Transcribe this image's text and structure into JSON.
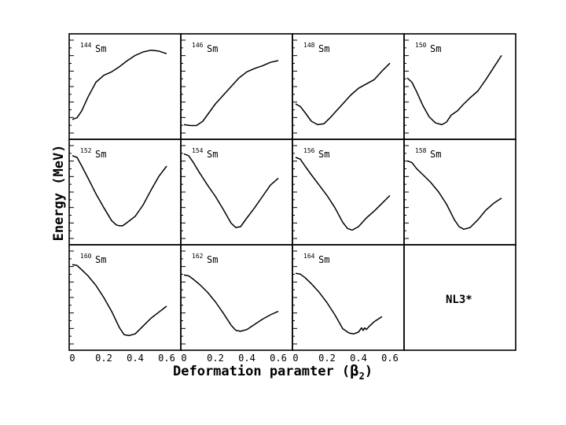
{
  "figure": {
    "xlabel_main": "Deformation paramter (",
    "xlabel_beta": "β",
    "xlabel_sub": "2",
    "xlabel_close": ")",
    "ylabel": "Energy (MeV)",
    "model_label": "NL3*"
  },
  "chart_data": {
    "type": "line",
    "xlabel": "Deformation paramter (β2)",
    "ylabel": "Energy (MeV)",
    "xlim": [
      0,
      0.6
    ],
    "x_ticks": [
      "0",
      "0.2",
      "0.4",
      "0.6"
    ],
    "grid": false,
    "panels": [
      {
        "mass": "144",
        "symbol": "Sm",
        "x": [
          0,
          0.03,
          0.06,
          0.1,
          0.15,
          0.2,
          0.25,
          0.3,
          0.35,
          0.4,
          0.45,
          0.5,
          0.55,
          0.6
        ],
        "y": [
          0.12,
          0.14,
          0.22,
          0.38,
          0.55,
          0.63,
          0.67,
          0.73,
          0.8,
          0.86,
          0.9,
          0.92,
          0.91,
          0.88
        ]
      },
      {
        "mass": "146",
        "symbol": "Sm",
        "x": [
          0,
          0.04,
          0.08,
          0.12,
          0.16,
          0.2,
          0.25,
          0.3,
          0.35,
          0.4,
          0.45,
          0.5,
          0.55,
          0.6
        ],
        "y": [
          0.06,
          0.05,
          0.05,
          0.1,
          0.2,
          0.3,
          0.4,
          0.5,
          0.6,
          0.67,
          0.71,
          0.74,
          0.78,
          0.8
        ]
      },
      {
        "mass": "148",
        "symbol": "Sm",
        "x": [
          0,
          0.03,
          0.06,
          0.1,
          0.14,
          0.18,
          0.22,
          0.26,
          0.3,
          0.35,
          0.4,
          0.45,
          0.5,
          0.55,
          0.6
        ],
        "y": [
          0.3,
          0.27,
          0.2,
          0.1,
          0.06,
          0.07,
          0.14,
          0.22,
          0.3,
          0.4,
          0.48,
          0.53,
          0.58,
          0.68,
          0.77
        ]
      },
      {
        "mass": "150",
        "symbol": "Sm",
        "x": [
          0,
          0.03,
          0.06,
          0.1,
          0.14,
          0.18,
          0.22,
          0.25,
          0.28,
          0.32,
          0.36,
          0.4,
          0.45,
          0.5,
          0.55,
          0.6
        ],
        "y": [
          0.6,
          0.55,
          0.44,
          0.28,
          0.15,
          0.08,
          0.06,
          0.09,
          0.17,
          0.22,
          0.3,
          0.37,
          0.45,
          0.58,
          0.72,
          0.86
        ]
      },
      {
        "mass": "152",
        "symbol": "Sm",
        "x": [
          0,
          0.03,
          0.06,
          0.1,
          0.15,
          0.2,
          0.25,
          0.28,
          0.3,
          0.32,
          0.35,
          0.4,
          0.45,
          0.5,
          0.55,
          0.6
        ],
        "y": [
          0.92,
          0.9,
          0.8,
          0.66,
          0.48,
          0.32,
          0.17,
          0.12,
          0.11,
          0.11,
          0.15,
          0.22,
          0.35,
          0.52,
          0.68,
          0.8
        ]
      },
      {
        "mass": "154",
        "symbol": "Sm",
        "x": [
          0,
          0.03,
          0.06,
          0.1,
          0.15,
          0.2,
          0.25,
          0.3,
          0.33,
          0.36,
          0.4,
          0.45,
          0.5,
          0.55,
          0.6
        ],
        "y": [
          0.94,
          0.92,
          0.84,
          0.72,
          0.58,
          0.45,
          0.3,
          0.14,
          0.09,
          0.1,
          0.2,
          0.32,
          0.45,
          0.58,
          0.66
        ]
      },
      {
        "mass": "156",
        "symbol": "Sm",
        "x": [
          0,
          0.03,
          0.06,
          0.1,
          0.15,
          0.2,
          0.25,
          0.3,
          0.33,
          0.36,
          0.4,
          0.45,
          0.5,
          0.55,
          0.6
        ],
        "y": [
          0.9,
          0.88,
          0.8,
          0.7,
          0.58,
          0.46,
          0.32,
          0.15,
          0.08,
          0.06,
          0.1,
          0.2,
          0.28,
          0.37,
          0.46
        ]
      },
      {
        "mass": "158",
        "symbol": "Sm",
        "x": [
          0,
          0.03,
          0.06,
          0.1,
          0.15,
          0.2,
          0.25,
          0.3,
          0.33,
          0.36,
          0.4,
          0.45,
          0.5,
          0.55,
          0.6
        ],
        "y": [
          0.86,
          0.84,
          0.77,
          0.7,
          0.61,
          0.5,
          0.36,
          0.18,
          0.1,
          0.07,
          0.09,
          0.18,
          0.29,
          0.37,
          0.43
        ]
      },
      {
        "mass": "160",
        "symbol": "Sm",
        "x": [
          0,
          0.03,
          0.06,
          0.1,
          0.15,
          0.2,
          0.25,
          0.3,
          0.33,
          0.36,
          0.4,
          0.45,
          0.5,
          0.55,
          0.6
        ],
        "y": [
          0.88,
          0.87,
          0.82,
          0.75,
          0.64,
          0.5,
          0.34,
          0.15,
          0.07,
          0.06,
          0.08,
          0.17,
          0.26,
          0.33,
          0.4
        ]
      },
      {
        "mass": "162",
        "symbol": "Sm",
        "x": [
          0,
          0.03,
          0.06,
          0.1,
          0.15,
          0.2,
          0.25,
          0.3,
          0.33,
          0.36,
          0.4,
          0.45,
          0.5,
          0.55,
          0.6
        ],
        "y": [
          0.76,
          0.75,
          0.71,
          0.65,
          0.56,
          0.45,
          0.32,
          0.18,
          0.12,
          0.11,
          0.13,
          0.19,
          0.25,
          0.3,
          0.34
        ]
      },
      {
        "mass": "164",
        "symbol": "Sm",
        "x": [
          0,
          0.03,
          0.06,
          0.1,
          0.15,
          0.2,
          0.25,
          0.3,
          0.34,
          0.37,
          0.4,
          0.42,
          0.43,
          0.44,
          0.45,
          0.47,
          0.5,
          0.55
        ],
        "y": [
          0.78,
          0.77,
          0.73,
          0.66,
          0.56,
          0.44,
          0.3,
          0.14,
          0.09,
          0.08,
          0.1,
          0.15,
          0.12,
          0.15,
          0.13,
          0.17,
          0.22,
          0.28
        ]
      }
    ]
  }
}
